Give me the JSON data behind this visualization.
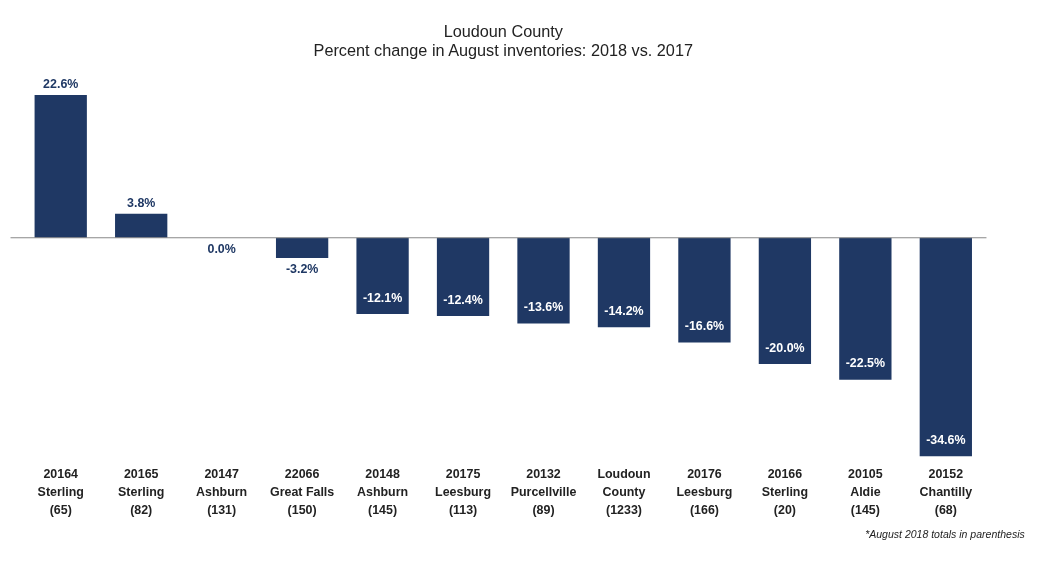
{
  "chart_data": {
    "type": "bar",
    "title": "Loudoun County",
    "subtitle": "Percent change in August inventories: 2018 vs. 2017",
    "categories": [
      "20164\nSterling\n(65)",
      "20165\nSterling\n(82)",
      "20147\nAshburn\n(131)",
      "22066\nGreat Falls\n(150)",
      "20148\nAshburn\n(145)",
      "20175\nLeesburg\n(113)",
      "20132\nPurcellville\n(89)",
      "Loudoun\nCounty\n(1233)",
      "20176\nLeesburg\n(166)",
      "20166\nSterling\n(20)",
      "20105\nAldie\n(145)",
      "20152\nChantilly\n(68)"
    ],
    "values": [
      22.6,
      3.8,
      0.0,
      -3.2,
      -12.1,
      -12.4,
      -13.6,
      -14.2,
      -16.6,
      -20.0,
      -22.5,
      -34.6
    ],
    "value_labels": [
      "22.6%",
      "3.8%",
      "0.0%",
      "-3.2%",
      "-12.1%",
      "-12.4%",
      "-13.6%",
      "-14.2%",
      "-16.6%",
      "-20.0%",
      "-22.5%",
      "-34.6%"
    ],
    "color": "#1f3864",
    "annotations": [
      "*August 2018 totals in parenthesis"
    ]
  }
}
